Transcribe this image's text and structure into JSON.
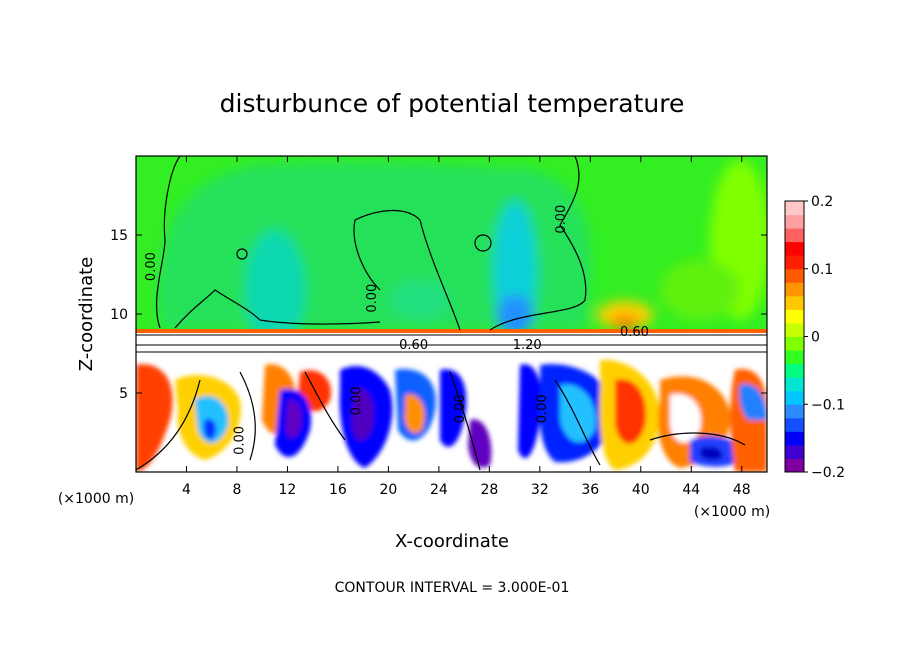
{
  "chart_data": {
    "type": "heatmap",
    "title": "disturbunce of potential temperature",
    "xlabel": "X-coordinate",
    "ylabel": "Z-coordinate",
    "x_unit": "(×1000 m)",
    "y_unit": "(×1000 m)",
    "xlim": [
      0,
      50
    ],
    "ylim": [
      0,
      20
    ],
    "x_ticks": [
      4,
      8,
      12,
      16,
      20,
      24,
      28,
      32,
      36,
      40,
      44,
      48
    ],
    "y_ticks": [
      5,
      10,
      15
    ],
    "colorbar": {
      "range": [
        -0.2,
        0.2
      ],
      "tick_values": [
        0.2,
        0.1,
        0,
        -0.1,
        -0.2
      ],
      "tick_labels": [
        "0.2",
        "0.1",
        "0",
        "−0.1",
        "−0.2"
      ],
      "colors": [
        "#7f00a0",
        "#4000d0",
        "#0000ff",
        "#1450ff",
        "#2a8cff",
        "#00c8ff",
        "#00e6d0",
        "#00ff80",
        "#30ff20",
        "#80ff00",
        "#c8ff00",
        "#ffff00",
        "#ffc800",
        "#ff9600",
        "#ff5a00",
        "#ff1e00",
        "#ff0000",
        "#ff6060",
        "#ffa0a0",
        "#ffc8c8"
      ]
    },
    "contour_labels": [
      {
        "text": "0.00",
        "x": 1.5,
        "z": 13
      },
      {
        "text": "0.00",
        "x": 8.5,
        "z": 2
      },
      {
        "text": "0.00",
        "x": 17.8,
        "z": 4.5
      },
      {
        "text": "0.00",
        "x": 19,
        "z": 11
      },
      {
        "text": "0.00",
        "x": 26,
        "z": 4
      },
      {
        "text": "0.00",
        "x": 32.5,
        "z": 4
      },
      {
        "text": "0.00",
        "x": 34,
        "z": 16
      },
      {
        "text": "0.60",
        "x": 22,
        "z": 7.8
      },
      {
        "text": "1.20",
        "x": 31,
        "z": 7.8
      },
      {
        "text": "0.60",
        "x": 39.5,
        "z": 8.6
      }
    ],
    "contour_interval_label": "CONTOUR INTERVAL = 3.000E-01"
  }
}
